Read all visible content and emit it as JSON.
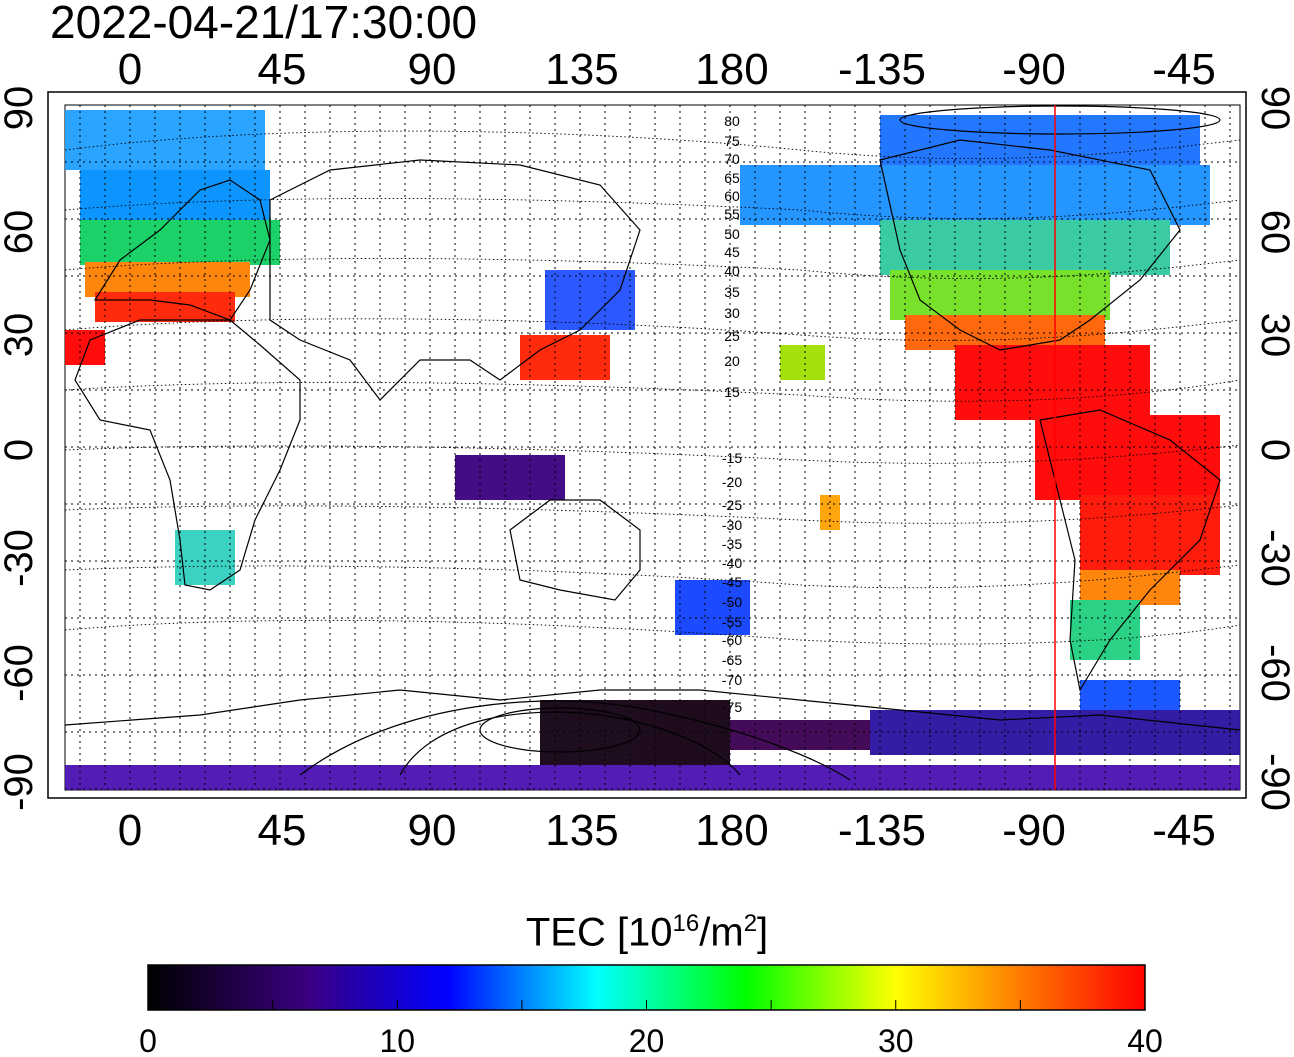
{
  "header": {
    "timestamp": "2022-04-21/17:30:00"
  },
  "map": {
    "top_lon_ticks": [
      "0",
      "45",
      "90",
      "135",
      "180",
      "-135",
      "-90",
      "-45"
    ],
    "bottom_lon_ticks": [
      "0",
      "45",
      "90",
      "135",
      "180",
      "-135",
      "-90",
      "-45"
    ],
    "left_lat_ticks": [
      "90",
      "60",
      "30",
      "0",
      "-30",
      "-60",
      "-90"
    ],
    "right_lat_ticks": [
      "90",
      "60",
      "30",
      "0",
      "-30",
      "-60",
      "-90"
    ],
    "contour_labels": [
      "80",
      "75",
      "70",
      "65",
      "60",
      "55",
      "50",
      "45",
      "40",
      "35",
      "30",
      "25",
      "20",
      "15",
      "-15",
      "-20",
      "-25",
      "-30",
      "-35",
      "-40",
      "-45",
      "-50",
      "-55",
      "-60",
      "-65",
      "-70",
      "-75"
    ],
    "marker_line_color": "#ff0000"
  },
  "colorbar": {
    "title_prefix": "TEC  [10",
    "title_exp1": "16",
    "title_mid": "/m",
    "title_exp2": "2",
    "title_suffix": "]",
    "min": 0,
    "max": 40,
    "tick_labels": [
      "0",
      "10",
      "20",
      "30",
      "40"
    ],
    "colors": [
      "#000000",
      "#3a0080",
      "#0000ff",
      "#00ffff",
      "#00ff00",
      "#ffff00",
      "#ff0000"
    ]
  }
}
